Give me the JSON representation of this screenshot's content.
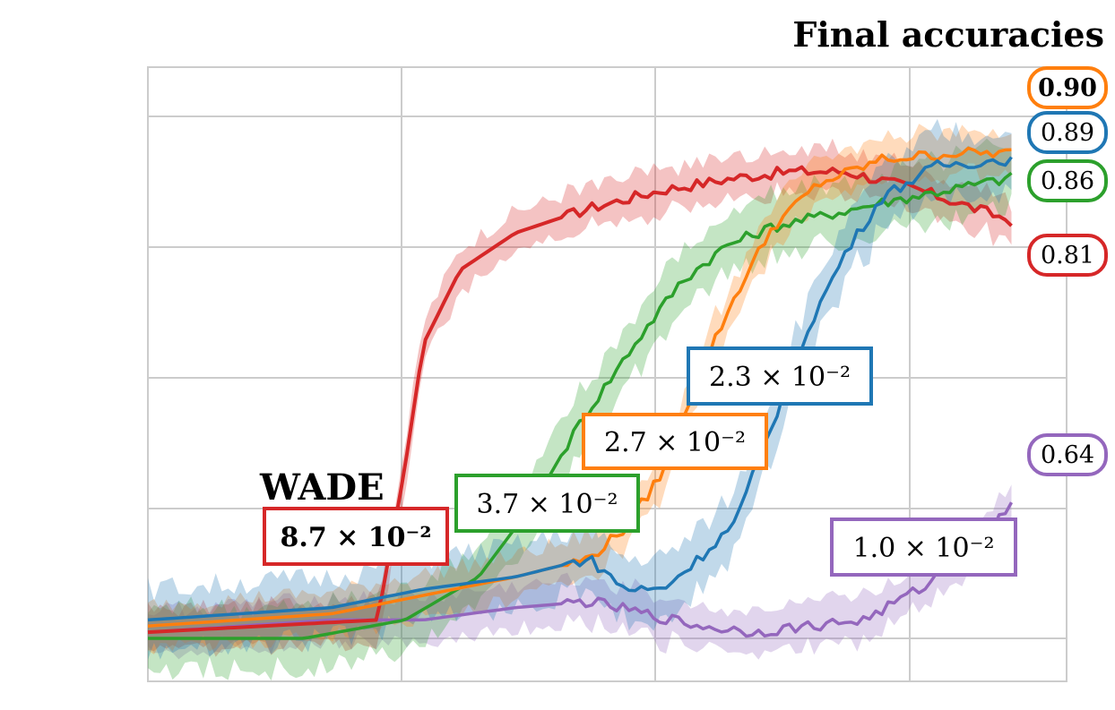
{
  "chart_data": {
    "type": "line",
    "title": "Final accuracies",
    "xlabel": "",
    "ylabel": "",
    "grid": true,
    "xlim": [
      0,
      1
    ],
    "ylim": [
      0,
      1
    ],
    "method_label": "WADE",
    "series": [
      {
        "color": "#d62728",
        "band_width": 0.035,
        "final_accuracy": "0.81",
        "final_bold": false,
        "annotation": "8.7 × 10⁻²",
        "annotation_bold": true,
        "points": [
          [
            0,
            0.08
          ],
          [
            0.25,
            0.1
          ],
          [
            0.28,
            0.35
          ],
          [
            0.3,
            0.55
          ],
          [
            0.34,
            0.67
          ],
          [
            0.4,
            0.73
          ],
          [
            0.48,
            0.77
          ],
          [
            0.56,
            0.8
          ],
          [
            0.64,
            0.82
          ],
          [
            0.7,
            0.83
          ],
          [
            0.76,
            0.83
          ],
          [
            0.84,
            0.8
          ],
          [
            0.9,
            0.77
          ],
          [
            0.94,
            0.75
          ]
        ]
      },
      {
        "color": "#2ca02c",
        "band_width": 0.05,
        "final_accuracy": "0.86",
        "final_bold": false,
        "annotation": "3.7 × 10⁻²",
        "annotation_bold": false,
        "points": [
          [
            0,
            0.07
          ],
          [
            0.17,
            0.07
          ],
          [
            0.28,
            0.1
          ],
          [
            0.36,
            0.17
          ],
          [
            0.42,
            0.29
          ],
          [
            0.47,
            0.42
          ],
          [
            0.53,
            0.55
          ],
          [
            0.58,
            0.65
          ],
          [
            0.63,
            0.71
          ],
          [
            0.68,
            0.74
          ],
          [
            0.74,
            0.76
          ],
          [
            0.8,
            0.78
          ],
          [
            0.87,
            0.8
          ],
          [
            0.94,
            0.82
          ]
        ]
      },
      {
        "color": "#ff7f0e",
        "band_width": 0.035,
        "final_accuracy": "0.90",
        "final_bold": true,
        "annotation": "2.7 × 10⁻²",
        "annotation_bold": false,
        "points": [
          [
            0,
            0.09
          ],
          [
            0.2,
            0.11
          ],
          [
            0.3,
            0.14
          ],
          [
            0.4,
            0.17
          ],
          [
            0.48,
            0.2
          ],
          [
            0.52,
            0.25
          ],
          [
            0.56,
            0.34
          ],
          [
            0.6,
            0.5
          ],
          [
            0.64,
            0.63
          ],
          [
            0.68,
            0.74
          ],
          [
            0.73,
            0.81
          ],
          [
            0.8,
            0.85
          ],
          [
            0.88,
            0.86
          ],
          [
            0.94,
            0.86
          ]
        ]
      },
      {
        "color": "#1f77b4",
        "band_width": 0.05,
        "final_accuracy": "0.89",
        "final_bold": false,
        "annotation": "2.3 × 10⁻²",
        "annotation_bold": false,
        "points": [
          [
            0,
            0.1
          ],
          [
            0.2,
            0.12
          ],
          [
            0.3,
            0.15
          ],
          [
            0.4,
            0.17
          ],
          [
            0.48,
            0.2
          ],
          [
            0.52,
            0.15
          ],
          [
            0.56,
            0.15
          ],
          [
            0.6,
            0.2
          ],
          [
            0.64,
            0.26
          ],
          [
            0.68,
            0.42
          ],
          [
            0.72,
            0.58
          ],
          [
            0.76,
            0.7
          ],
          [
            0.8,
            0.79
          ],
          [
            0.86,
            0.84
          ],
          [
            0.94,
            0.85
          ]
        ]
      },
      {
        "color": "#9467bd",
        "band_width": 0.035,
        "final_accuracy": "0.64",
        "final_bold": false,
        "annotation": "1.0 × 10⁻²",
        "annotation_bold": false,
        "points": [
          [
            0,
            0.08
          ],
          [
            0.2,
            0.1
          ],
          [
            0.3,
            0.1
          ],
          [
            0.4,
            0.12
          ],
          [
            0.48,
            0.13
          ],
          [
            0.54,
            0.11
          ],
          [
            0.6,
            0.09
          ],
          [
            0.66,
            0.08
          ],
          [
            0.72,
            0.09
          ],
          [
            0.78,
            0.1
          ],
          [
            0.84,
            0.15
          ],
          [
            0.9,
            0.22
          ],
          [
            0.94,
            0.29
          ]
        ]
      }
    ]
  }
}
